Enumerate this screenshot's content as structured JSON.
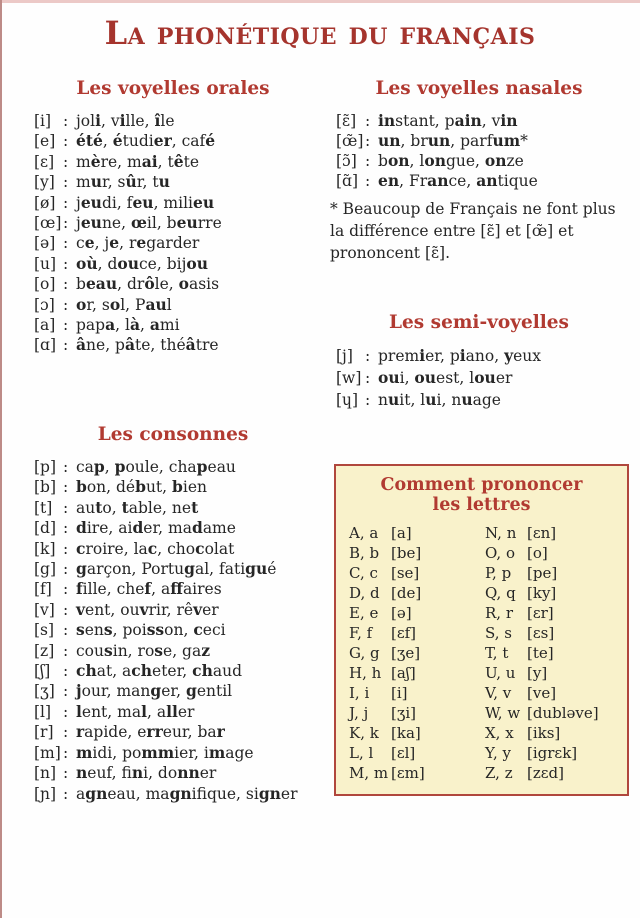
{
  "page_title": "La phonétique du français",
  "separator": ":",
  "sections": {
    "orales": {
      "heading": "Les voyelles orales",
      "entries": [
        {
          "symbol": "[i]",
          "words": "jol{i}, v{i}lle, {î}le"
        },
        {
          "symbol": "[e]",
          "words": "{été}, {é}tudi{er}, caf{é}"
        },
        {
          "symbol": "[ɛ]",
          "words": "m{è}re, m{ai}, t{ê}te"
        },
        {
          "symbol": "[y]",
          "words": "m{u}r, s{û}r, t{u}"
        },
        {
          "symbol": "[ø]",
          "words": "j{eu}di, f{eu}, mili{eu}"
        },
        {
          "symbol": "[œ]",
          "words": "j{eu}ne, {œ}il, b{eu}rre"
        },
        {
          "symbol": "[ə]",
          "words": "c{e}, j{e}, r{e}garder"
        },
        {
          "symbol": "[u]",
          "words": "{où}, d{ou}ce, bij{ou}"
        },
        {
          "symbol": "[o]",
          "words": "b{eau}, dr{ô}le, {o}asis"
        },
        {
          "symbol": "[ɔ]",
          "words": "{o}r, s{o}l, P{au}l"
        },
        {
          "symbol": "[a]",
          "words": "pap{a}, l{à}, {a}mi"
        },
        {
          "symbol": "[ɑ]",
          "words": "{â}ne, p{â}te, thé{â}tre"
        }
      ]
    },
    "nasales": {
      "heading": "Les voyelles nasales",
      "entries": [
        {
          "symbol": "[ɛ̃]",
          "words": "{in}stant, p{ain}, v{in}"
        },
        {
          "symbol": "[œ̃]",
          "words": "{un}, br{un}, parf{um}*"
        },
        {
          "symbol": "[ɔ̃]",
          "words": "b{on}, l{on}gue, {on}ze"
        },
        {
          "symbol": "[ɑ̃]",
          "words": "{en}, Fr{an}ce, {an}tique"
        }
      ],
      "note": "* Beaucoup de Français ne font plus la différence entre [ɛ̃] et [œ̃] et prononcent [ɛ̃]."
    },
    "semi": {
      "heading": "Les semi-voyelles",
      "entries": [
        {
          "symbol": "[j]",
          "words": "prem{i}er, p{i}ano, {y}eux"
        },
        {
          "symbol": "[w]",
          "words": "{ou}i, {ou}est, l{ou}er"
        },
        {
          "symbol": "[ɥ]",
          "words": "n{u}it, l{u}i, n{u}age"
        }
      ]
    },
    "consonnes": {
      "heading": "Les consonnes",
      "entries": [
        {
          "symbol": "[p]",
          "words": "ca{p}, {p}oule, cha{p}eau"
        },
        {
          "symbol": "[b]",
          "words": "{b}on, dé{b}ut, {b}ien"
        },
        {
          "symbol": "[t]",
          "words": "au{t}o, {t}able, ne{t}"
        },
        {
          "symbol": "[d]",
          "words": "{d}ire, ai{d}er, ma{d}ame"
        },
        {
          "symbol": "[k]",
          "words": "{c}roire, la{c}, cho{c}olat"
        },
        {
          "symbol": "[g]",
          "words": "{g}arçon, Portu{g}al, fati{gu}é"
        },
        {
          "symbol": "[f]",
          "words": "{f}ille, che{f}, a{ff}aires"
        },
        {
          "symbol": "[v]",
          "words": "{v}ent, ou{v}rir, rê{v}er"
        },
        {
          "symbol": "[s]",
          "words": "{s}en{s}, poi{ss}on, {c}eci"
        },
        {
          "symbol": "[z]",
          "words": "cou{s}in, ro{s}e, ga{z}"
        },
        {
          "symbol": "[ʃ]",
          "words": "{ch}at, a{ch}eter, {ch}aud"
        },
        {
          "symbol": "[ʒ]",
          "words": "{j}our, man{g}er, {g}entil"
        },
        {
          "symbol": "[l]",
          "words": "{l}ent, ma{l}, a{ll}er"
        },
        {
          "symbol": "[r]",
          "words": "{r}apide, e{rr}eur, ba{r}"
        },
        {
          "symbol": "[m]",
          "words": "{m}idi, po{mm}ier, i{m}age"
        },
        {
          "symbol": "[n]",
          "words": "{n}euf, fi{n}i, do{nn}er"
        },
        {
          "symbol": "[ɲ]",
          "words": "a{gn}eau, ma{gn}ifique, si{gn}er"
        }
      ]
    },
    "lettres": {
      "heading_line1": "Comment prononcer",
      "heading_line2": "les lettres",
      "left": [
        {
          "letter": "A, a",
          "pron": "[a]"
        },
        {
          "letter": "B, b",
          "pron": "[be]"
        },
        {
          "letter": "C, c",
          "pron": "[se]"
        },
        {
          "letter": "D, d",
          "pron": "[de]"
        },
        {
          "letter": "E, e",
          "pron": "[ə]"
        },
        {
          "letter": "F, f",
          "pron": "[ɛf]"
        },
        {
          "letter": "G, g",
          "pron": "[ʒe]"
        },
        {
          "letter": "H, h",
          "pron": "[aʃ]"
        },
        {
          "letter": "I, i",
          "pron": "[i]"
        },
        {
          "letter": "J, j",
          "pron": "[ʒi]"
        },
        {
          "letter": "K, k",
          "pron": "[ka]"
        },
        {
          "letter": "L, l",
          "pron": "[ɛl]"
        },
        {
          "letter": "M, m",
          "pron": "[ɛm]"
        }
      ],
      "right": [
        {
          "letter": "N, n",
          "pron": "[ɛn]"
        },
        {
          "letter": "O, o",
          "pron": "[o]"
        },
        {
          "letter": "P, p",
          "pron": "[pe]"
        },
        {
          "letter": "Q, q",
          "pron": "[ky]"
        },
        {
          "letter": "R, r",
          "pron": "[ɛr]"
        },
        {
          "letter": "S, s",
          "pron": "[ɛs]"
        },
        {
          "letter": "T, t",
          "pron": "[te]"
        },
        {
          "letter": "U, u",
          "pron": "[y]"
        },
        {
          "letter": "V, v",
          "pron": "[ve]"
        },
        {
          "letter": "W, w",
          "pron": "[dubləve]"
        },
        {
          "letter": "X, x",
          "pron": "[iks]"
        },
        {
          "letter": "Y, y",
          "pron": "[igrɛk]"
        },
        {
          "letter": "Z, z",
          "pron": "[zɛd]"
        }
      ]
    }
  },
  "colors": {
    "title_red": "#a5342d",
    "heading_red": "#b13a31",
    "box_border": "#b0473d",
    "box_bg": "#f9f2cb",
    "body_text": "#262626",
    "page_bg": "#fefefe",
    "edge_pink": "#ecc9c7",
    "edge_red": "#bd8b87"
  }
}
